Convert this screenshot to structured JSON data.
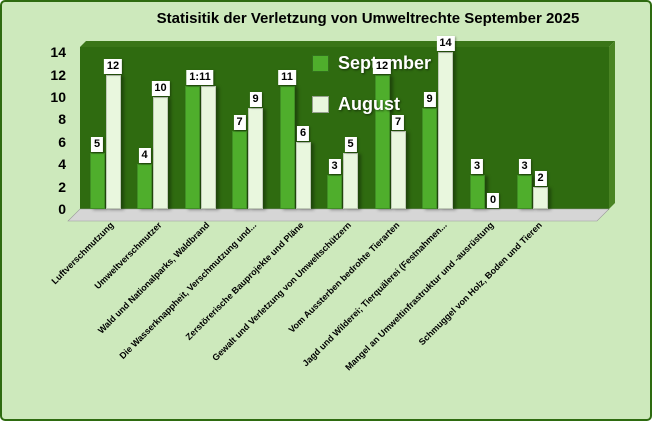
{
  "title": "Statisitik der Verletzung von Umweltrechte September 2025",
  "colors": {
    "background": "#cde9bc",
    "border": "#2e6b10",
    "plot_wall": "#2f6b10",
    "floor": "#d6d6d6",
    "floor_edge": "#9a9a9a",
    "wall_side": "#4a8424",
    "wall_top": "#3a7518",
    "september": "#4fae2c",
    "august": "#e9f7de",
    "label_box": "#ffffff",
    "legend_text": "#ffffff"
  },
  "y_axis": {
    "ticks": [
      "14",
      "12",
      "10",
      "8",
      "6",
      "4",
      "2",
      "0"
    ]
  },
  "chart_data": {
    "type": "bar",
    "title": "Statisitik der Verletzung von Umweltrechte September 2025",
    "categories": [
      "Luftverschmutzung",
      "Umweltverschmutzer",
      "Wald und Nationalparks, Waldbrand",
      "Die Wasserknappheit, Verschmutzung und...",
      "Zerstörerische Bauprojekte und Pläne",
      "Gewalt und Verletzung von Umweltschützern",
      "Vom Aussterben bedrohte Tierarten",
      "Jagd und Wilderei; Tierquälerei (Festnahmen...",
      "Mangel an Umweltinfrastruktur und -ausrüstung",
      "Schmuggel von Holz, Boden und Tieren"
    ],
    "series": [
      {
        "name": "September",
        "color": "#4fae2c",
        "values": [
          5,
          4,
          11,
          7,
          11,
          3,
          12,
          9,
          3,
          3
        ],
        "labels": [
          "5",
          "4",
          "1:11",
          "7",
          "11",
          "3",
          "12",
          "9",
          "3",
          "3"
        ]
      },
      {
        "name": "August",
        "color": "#e9f7de",
        "values": [
          12,
          10,
          11,
          9,
          6,
          5,
          7,
          14,
          0,
          2
        ],
        "labels": [
          "12",
          "10",
          "",
          "9",
          "6",
          "5",
          "7",
          "14",
          "0",
          "2"
        ]
      }
    ],
    "ylim": [
      0,
      14
    ],
    "grid": false,
    "legend_position": "inside-top-center"
  }
}
